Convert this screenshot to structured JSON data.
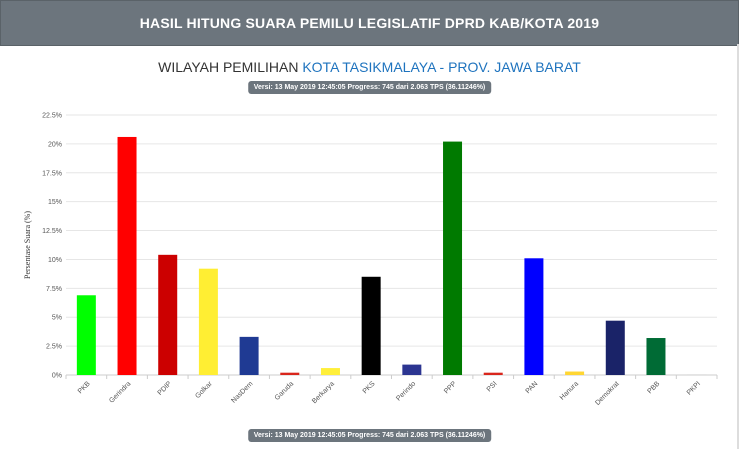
{
  "header": {
    "title": "HASIL HITUNG SUARA PEMILU LEGISLATIF DPRD KAB/KOTA 2019"
  },
  "region": {
    "label": "WILAYAH PEMILIHAN",
    "value": "KOTA TASIKMALAYA - PROV. JAWA BARAT"
  },
  "version_text": "Versi: 13 May 2019 12:45:05 Progress: 745 dari 2.063 TPS (36.11246%)",
  "chart_data": {
    "type": "bar",
    "title": "",
    "xlabel": "",
    "ylabel": "Persentase Suara (%)",
    "ylim": [
      0,
      22.5
    ],
    "yticks": [
      "0%",
      "2.5%",
      "5%",
      "7.5%",
      "10%",
      "12.5%",
      "15%",
      "17.5%",
      "20%",
      "22.5%"
    ],
    "grid": true,
    "legend": "none",
    "categories": [
      "PKB",
      "Gerindra",
      "PDIP",
      "Golkar",
      "NasDem",
      "Garuda",
      "Berkarya",
      "PKS",
      "Perindo",
      "PPP",
      "PSI",
      "PAN",
      "Hanura",
      "Demokrat",
      "PBB",
      "PKPI"
    ],
    "values": [
      6.9,
      20.6,
      10.4,
      9.2,
      3.3,
      0.2,
      0.6,
      8.5,
      0.9,
      20.2,
      0.2,
      10.1,
      0.3,
      4.7,
      3.2,
      0.05
    ],
    "colors": [
      "#00ff00",
      "#ff0000",
      "#cc0000",
      "#ffee33",
      "#1f3a93",
      "#d9261c",
      "#ffef3a",
      "#000000",
      "#2c3591",
      "#007a00",
      "#d9261c",
      "#0000ff",
      "#ffd633",
      "#1a2368",
      "#006b35",
      "#d0d0d0"
    ]
  }
}
